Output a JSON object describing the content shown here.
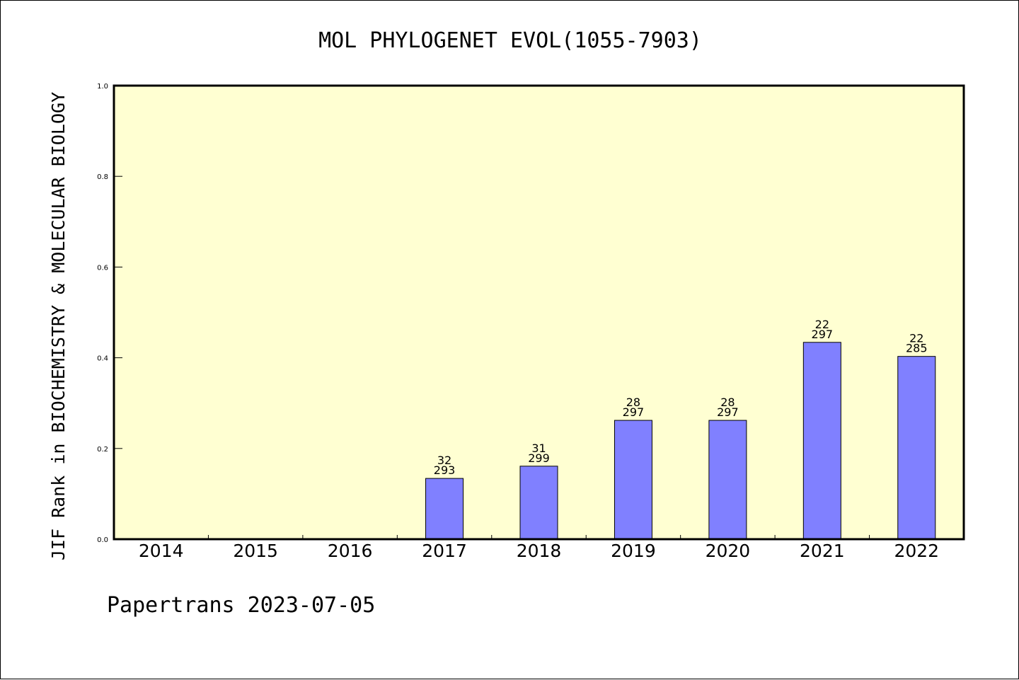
{
  "chart_data": {
    "type": "bar",
    "title": "MOL PHYLOGENET EVOL(1055-7903)",
    "ylabel": "JIF Rank in BIOCHEMISTRY & MOLECULAR BIOLOGY",
    "xlabel": "",
    "categories": [
      "2014",
      "2015",
      "2016",
      "2017",
      "2018",
      "2019",
      "2020",
      "2021",
      "2022"
    ],
    "values": [
      null,
      null,
      null,
      0.134,
      0.161,
      0.262,
      0.262,
      0.434,
      0.403
    ],
    "rank": [
      null,
      null,
      null,
      "32",
      "31",
      "28",
      "28",
      "22",
      "22"
    ],
    "total": [
      null,
      null,
      null,
      "293",
      "299",
      "297",
      "297",
      "297",
      "285"
    ],
    "ylim": [
      0,
      1.0
    ],
    "yticks": [
      "0.0",
      "0.2",
      "0.4",
      "0.6",
      "0.8",
      "1.0"
    ],
    "grid": false,
    "plot_background": "#ffffd2",
    "bar_color": "#8080ff"
  },
  "footer": "Papertrans 2023-07-05"
}
